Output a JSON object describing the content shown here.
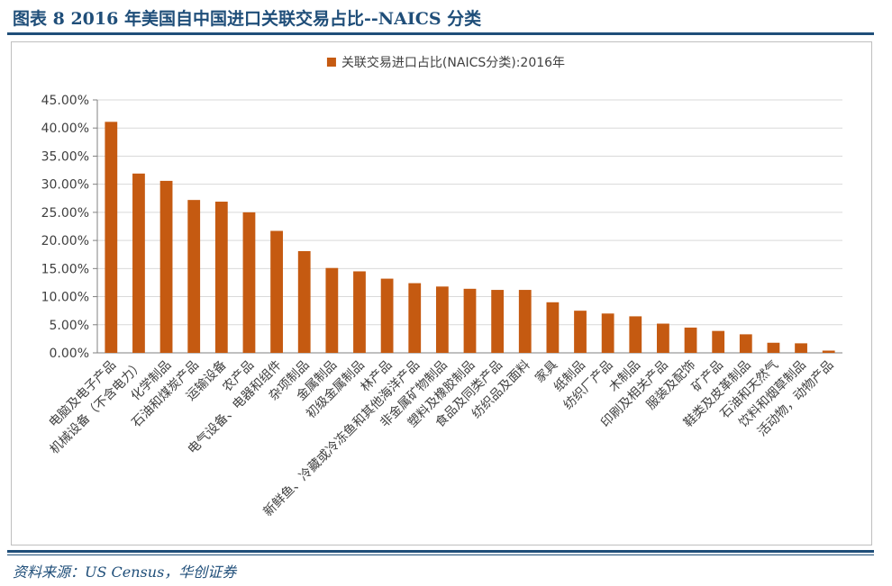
{
  "header": {
    "title": "图表 8   2016 年美国自中国进口关联交易占比--NAICS 分类"
  },
  "footer": {
    "source": "资料来源：US Census，华创证券"
  },
  "colors": {
    "bar": "#c55a11",
    "accent": "#1f4e79",
    "grid": "#d9d9d9"
  },
  "chart_data": {
    "type": "bar",
    "legend": "关联交易进口占比(NAICS分类):2016年",
    "legend_position": "top-center",
    "grid": true,
    "ylim": [
      0,
      45
    ],
    "yticks": [
      0,
      5,
      10,
      15,
      20,
      25,
      30,
      35,
      40,
      45
    ],
    "ytick_labels": [
      "0.00%",
      "5.00%",
      "10.00%",
      "15.00%",
      "20.00%",
      "25.00%",
      "30.00%",
      "35.00%",
      "40.00%",
      "45.00%"
    ],
    "categories": [
      "电脑及电子产品",
      "机械设备（不含电力）",
      "化学制品",
      "石油和煤炭产品",
      "运输设备",
      "农产品",
      "电气设备、电器和组件",
      "杂项制品",
      "金属制品",
      "初级金属制品",
      "林产品",
      "新鲜鱼、冷藏或冷冻鱼和其他海洋产品",
      "非金属矿物制品",
      "塑料及橡胶制品",
      "食品及同类产品",
      "纺织品及面料",
      "家具",
      "纸制品",
      "纺织厂产品",
      "木制品",
      "印刷及相关产品",
      "服装及配饰",
      "矿产品",
      "鞋类及皮革制品",
      "石油和天然气",
      "饮料和烟草制品",
      "活动物，动物产品"
    ],
    "values": [
      41.1,
      31.9,
      30.6,
      27.2,
      26.9,
      25.0,
      21.7,
      18.1,
      15.1,
      14.5,
      13.2,
      12.4,
      11.8,
      11.4,
      11.2,
      11.2,
      9.0,
      7.5,
      7.0,
      6.5,
      5.2,
      4.5,
      3.9,
      3.3,
      1.8,
      1.7,
      0.4
    ]
  }
}
